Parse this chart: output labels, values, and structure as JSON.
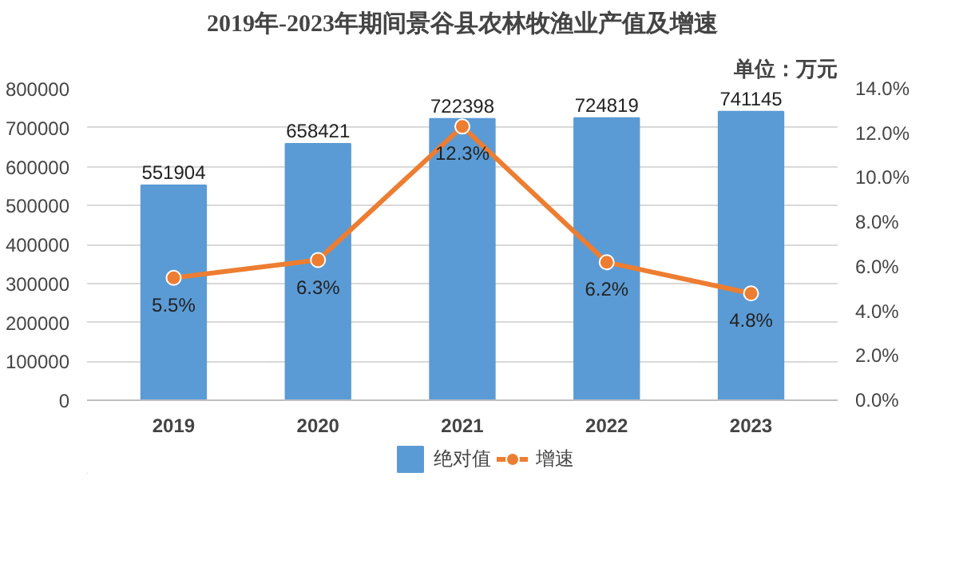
{
  "chart_data": {
    "type": "bar",
    "title": "2019年-2023年期间景谷县农林牧渔业产值及增速",
    "subtitle": "单位：万元",
    "categories": [
      "2019",
      "2020",
      "2021",
      "2022",
      "2023"
    ],
    "series": [
      {
        "name": "绝对值",
        "color": "#5b9bd5",
        "values": [
          551904,
          658421,
          722398,
          724819,
          741145
        ]
      },
      {
        "name": "增速",
        "type": "line",
        "axis": "y2",
        "color": "#ed7d31",
        "values": [
          5.5,
          6.3,
          12.3,
          6.2,
          4.8
        ],
        "value_labels": [
          "5.5%",
          "6.3%",
          "12.3%",
          "6.2%",
          "4.8%"
        ]
      }
    ],
    "ylim": [
      0,
      800000
    ],
    "yticks": [
      0,
      100000,
      200000,
      300000,
      400000,
      500000,
      600000,
      700000,
      800000
    ],
    "y2lim": [
      0,
      14
    ],
    "y2ticks": [
      {
        "value": 0,
        "label": "0.0%"
      },
      {
        "value": 2,
        "label": "2.0%"
      },
      {
        "value": 4,
        "label": "4.0%"
      },
      {
        "value": 6,
        "label": "6.0%"
      },
      {
        "value": 8,
        "label": "8.0%"
      },
      {
        "value": 10,
        "label": "10.0%"
      },
      {
        "value": 12,
        "label": "12.0%"
      },
      {
        "value": 14,
        "label": "14.0%"
      }
    ],
    "data_labels": true,
    "grid": "y",
    "legend": "bottom",
    "marker": "circle",
    "line_style": "solid"
  }
}
